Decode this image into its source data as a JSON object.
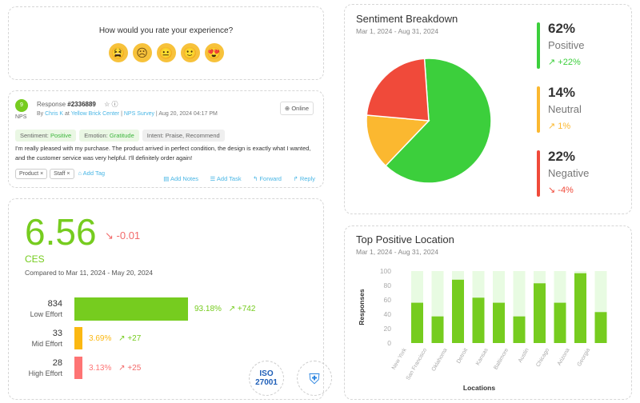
{
  "rating": {
    "question": "How would you rate your experience?",
    "emojis": [
      "😫",
      "☹",
      "😐",
      "🙂",
      "😍"
    ]
  },
  "response": {
    "nps_score": "9",
    "nps_label": "NPS",
    "title_prefix": "Response",
    "id": "#2336889",
    "by": "By",
    "author": "Chris K",
    "at": "at",
    "location": "Yellow Brick Center",
    "survey": "NPS Survey",
    "datetime": "Aug 20, 2024 04:17 PM",
    "channel": "Online",
    "sentiment_label": "Sentiment:",
    "sentiment_value": "Positive",
    "emotion_label": "Emotion:",
    "emotion_value": "Gratitude",
    "intent_label": "Intent:",
    "intent_value": "Praise, Recommend",
    "text": "I'm really pleased with my purchase. The product arrived in perfect condition, the design is exactly what I wanted, and the customer service was very helpful. I'll definitely order again!",
    "tags": [
      "Product",
      "Staff"
    ],
    "add_tag": "Add Tag",
    "add_notes": "Add Notes",
    "add_task": "Add Task",
    "forward": "Forward",
    "reply": "Reply"
  },
  "ces": {
    "score": "6.56",
    "delta": "-0.01",
    "label": "CES",
    "compared": "Compared to Mar 11, 2024 - May 20, 2024",
    "rows": [
      {
        "count": "834",
        "label": "Low Effort",
        "pct": "93.18%",
        "change": "+742",
        "fraction": 93.18,
        "color": "#76cc1f"
      },
      {
        "count": "33",
        "label": "Mid Effort",
        "pct": "3.69%",
        "change": "+27",
        "fraction": 3.69,
        "color": "#fbb812"
      },
      {
        "count": "28",
        "label": "High Effort",
        "pct": "3.13%",
        "change": "+25",
        "fraction": 3.13,
        "color": "#fe7474"
      }
    ],
    "badges": [
      "ISO 27001",
      "Security Shield"
    ]
  },
  "sentiment": {
    "title": "Sentiment Breakdown",
    "range": "Mar 1, 2024 - Aug 31, 2024",
    "items": [
      {
        "pct": "62%",
        "label": "Positive",
        "change": "+22%",
        "value": 62,
        "color": "#3ccf3c"
      },
      {
        "pct": "14%",
        "label": "Neutral",
        "change": "1%",
        "value": 14,
        "color": "#fbb830"
      },
      {
        "pct": "22%",
        "label": "Negative",
        "change": "-4%",
        "value": 22,
        "color": "#f04a3a"
      }
    ]
  },
  "chart_data": {
    "type": "bar",
    "title": "Top Positive Location",
    "subtitle": "Mar 1, 2024 - Aug 31, 2024",
    "xlabel": "Locations",
    "ylabel": "Responses",
    "ylim": [
      0,
      100
    ],
    "yticks": [
      0,
      20,
      40,
      60,
      80,
      100
    ],
    "categories": [
      "New York",
      "San Francisco",
      "Oklahoma",
      "Detroit",
      "Kansas",
      "Baltimore",
      "Austin",
      "Chicago",
      "Arizona",
      "Georgia"
    ],
    "values": [
      56,
      37,
      88,
      63,
      56,
      37,
      83,
      56,
      97,
      43
    ],
    "background": [
      100,
      100,
      100,
      100,
      100,
      100,
      100,
      100,
      100,
      100
    ]
  }
}
